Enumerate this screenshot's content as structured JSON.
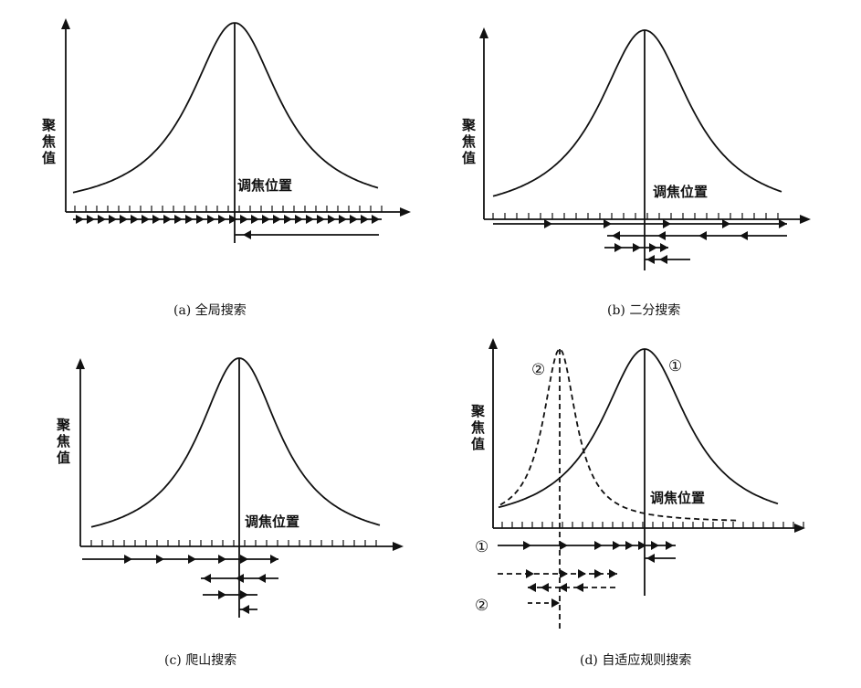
{
  "panels": [
    {
      "id": "a",
      "caption": "(a) 全局搜索",
      "ylabel": [
        "聚",
        "焦",
        "值"
      ],
      "xlabel": "调焦位置"
    },
    {
      "id": "b",
      "caption": "(b) 二分搜索",
      "ylabel": [
        "聚",
        "焦",
        "值"
      ],
      "xlabel": "调焦位置"
    },
    {
      "id": "c",
      "caption": "(c) 爬山搜索",
      "ylabel": [
        "聚",
        "焦",
        "值"
      ],
      "xlabel": "调焦位置"
    },
    {
      "id": "d",
      "caption": "(d) 自适应规则搜索",
      "ylabel": [
        "聚",
        "焦",
        "值"
      ],
      "xlabel": "调焦位置",
      "marker1": "①",
      "marker2": "②",
      "row_marker1": "①",
      "row_marker2": "②"
    }
  ],
  "colors": {
    "ink": "#111111",
    "background": "#ffffff"
  }
}
